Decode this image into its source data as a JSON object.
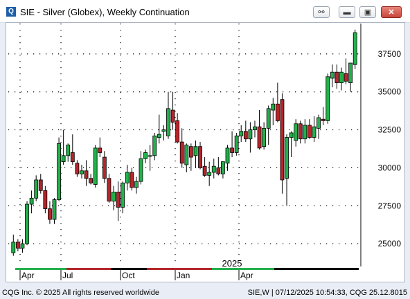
{
  "window": {
    "title": "SIE - Silver (Globex), Weekly Continuation",
    "app_icon": "Q",
    "buttons": [
      "link-icon",
      "minimize-icon",
      "maximize-icon",
      "close-icon"
    ]
  },
  "status_bar": {
    "left": "CQG Inc. © 2025 All rights reserved worldwide",
    "right": "SIE,W | 07/12/2025 10:54:33, CQG 25.12.8015"
  },
  "colors": {
    "up": "#22b04b",
    "down": "#b3262b",
    "grid": "#000000",
    "background": "#ffffff"
  },
  "chart_data": {
    "type": "candlestick",
    "title": "SIE - Silver (Globex), Weekly Continuation",
    "year_label": "2025",
    "x_labels": [
      "Apr",
      "Jul",
      "Oct",
      "Jan",
      "Apr"
    ],
    "y_ticks": [
      25000,
      27500,
      30000,
      32500,
      35000,
      37500
    ],
    "y_tick_labels": [
      "25000",
      "27500",
      "30000",
      "32500",
      "35000",
      "37500"
    ],
    "ylim": [
      23500,
      39500
    ],
    "grid": true,
    "candles": [
      [
        24400,
        25600,
        24200,
        25100
      ],
      [
        25100,
        25300,
        24500,
        24700
      ],
      [
        24700,
        25300,
        24400,
        25000
      ],
      [
        25000,
        27800,
        24900,
        27600
      ],
      [
        27600,
        28500,
        27000,
        28000
      ],
      [
        28000,
        29500,
        27800,
        29200
      ],
      [
        29200,
        29600,
        28300,
        28500
      ],
      [
        28500,
        28800,
        27000,
        27300
      ],
      [
        27300,
        27800,
        26300,
        26600
      ],
      [
        26600,
        28000,
        26300,
        27900
      ],
      [
        27900,
        32000,
        27800,
        31600
      ],
      [
        30400,
        32500,
        30200,
        30800
      ],
      [
        30800,
        31600,
        30400,
        31500
      ],
      [
        31000,
        32200,
        30200,
        30400
      ],
      [
        30300,
        30500,
        29400,
        29600
      ],
      [
        29600,
        30200,
        29300,
        29800
      ],
      [
        29800,
        30500,
        28800,
        29300
      ],
      [
        29300,
        29600,
        28900,
        29000
      ],
      [
        28900,
        31500,
        28700,
        31300
      ],
      [
        31300,
        32000,
        30700,
        31000
      ],
      [
        30700,
        31100,
        29000,
        29300
      ],
      [
        29300,
        29600,
        27700,
        27800
      ],
      [
        27800,
        28800,
        27200,
        28400
      ],
      [
        28400,
        29100,
        26500,
        27400
      ],
      [
        27400,
        29100,
        27000,
        29000
      ],
      [
        29000,
        30200,
        28500,
        29700
      ],
      [
        29700,
        30000,
        28500,
        28700
      ],
      [
        28700,
        29400,
        28300,
        29100
      ],
      [
        29100,
        31100,
        28900,
        30600
      ],
      [
        30600,
        31200,
        30300,
        31000
      ],
      [
        30800,
        31500,
        29800,
        30800
      ],
      [
        30800,
        32300,
        30500,
        32100
      ],
      [
        32000,
        33500,
        31600,
        32200
      ],
      [
        32400,
        32800,
        31800,
        32500
      ],
      [
        32100,
        35000,
        31900,
        33900
      ],
      [
        33800,
        35000,
        32500,
        33000
      ],
      [
        33100,
        33600,
        31600,
        31700
      ],
      [
        31700,
        32600,
        30000,
        30300
      ],
      [
        30200,
        31600,
        29700,
        31500
      ],
      [
        31400,
        31600,
        29800,
        30700
      ],
      [
        30800,
        31800,
        30000,
        31400
      ],
      [
        31400,
        31700,
        29900,
        30000
      ],
      [
        30100,
        30700,
        29400,
        29500
      ],
      [
        29500,
        30400,
        28800,
        29700
      ],
      [
        29700,
        30600,
        29300,
        30100
      ],
      [
        30000,
        30700,
        29500,
        29600
      ],
      [
        29600,
        30400,
        29300,
        30400
      ],
      [
        30300,
        31500,
        29800,
        31300
      ],
      [
        31300,
        32400,
        30700,
        31000
      ],
      [
        31000,
        32300,
        30800,
        32100
      ],
      [
        32100,
        32800,
        31700,
        32400
      ],
      [
        32400,
        33100,
        31700,
        31900
      ],
      [
        31900,
        33000,
        31000,
        32500
      ],
      [
        32500,
        33100,
        32000,
        32700
      ],
      [
        32700,
        33800,
        31200,
        31300
      ],
      [
        31400,
        33000,
        31200,
        32600
      ],
      [
        32600,
        34100,
        31500,
        33900
      ],
      [
        33800,
        34600,
        32800,
        34200
      ],
      [
        34200,
        35600,
        33000,
        33100
      ],
      [
        34500,
        34900,
        28300,
        29200
      ],
      [
        29300,
        32200,
        27500,
        32000
      ],
      [
        32000,
        32400,
        30700,
        32300
      ],
      [
        31800,
        33200,
        31400,
        32900
      ],
      [
        32900,
        33100,
        31600,
        31900
      ],
      [
        31900,
        33200,
        31600,
        32800
      ],
      [
        32800,
        33200,
        31900,
        32000
      ],
      [
        32000,
        33400,
        31700,
        32700
      ],
      [
        32600,
        33500,
        31900,
        33300
      ],
      [
        33200,
        34000,
        32800,
        33100
      ],
      [
        33100,
        36200,
        32900,
        36000
      ],
      [
        35900,
        36800,
        35300,
        36300
      ],
      [
        36300,
        36800,
        35200,
        35600
      ],
      [
        35600,
        36600,
        35100,
        36300
      ],
      [
        36200,
        37200,
        35500,
        35700
      ],
      [
        35600,
        36900,
        35000,
        36900
      ],
      [
        36800,
        39100,
        36500,
        38900
      ]
    ]
  }
}
